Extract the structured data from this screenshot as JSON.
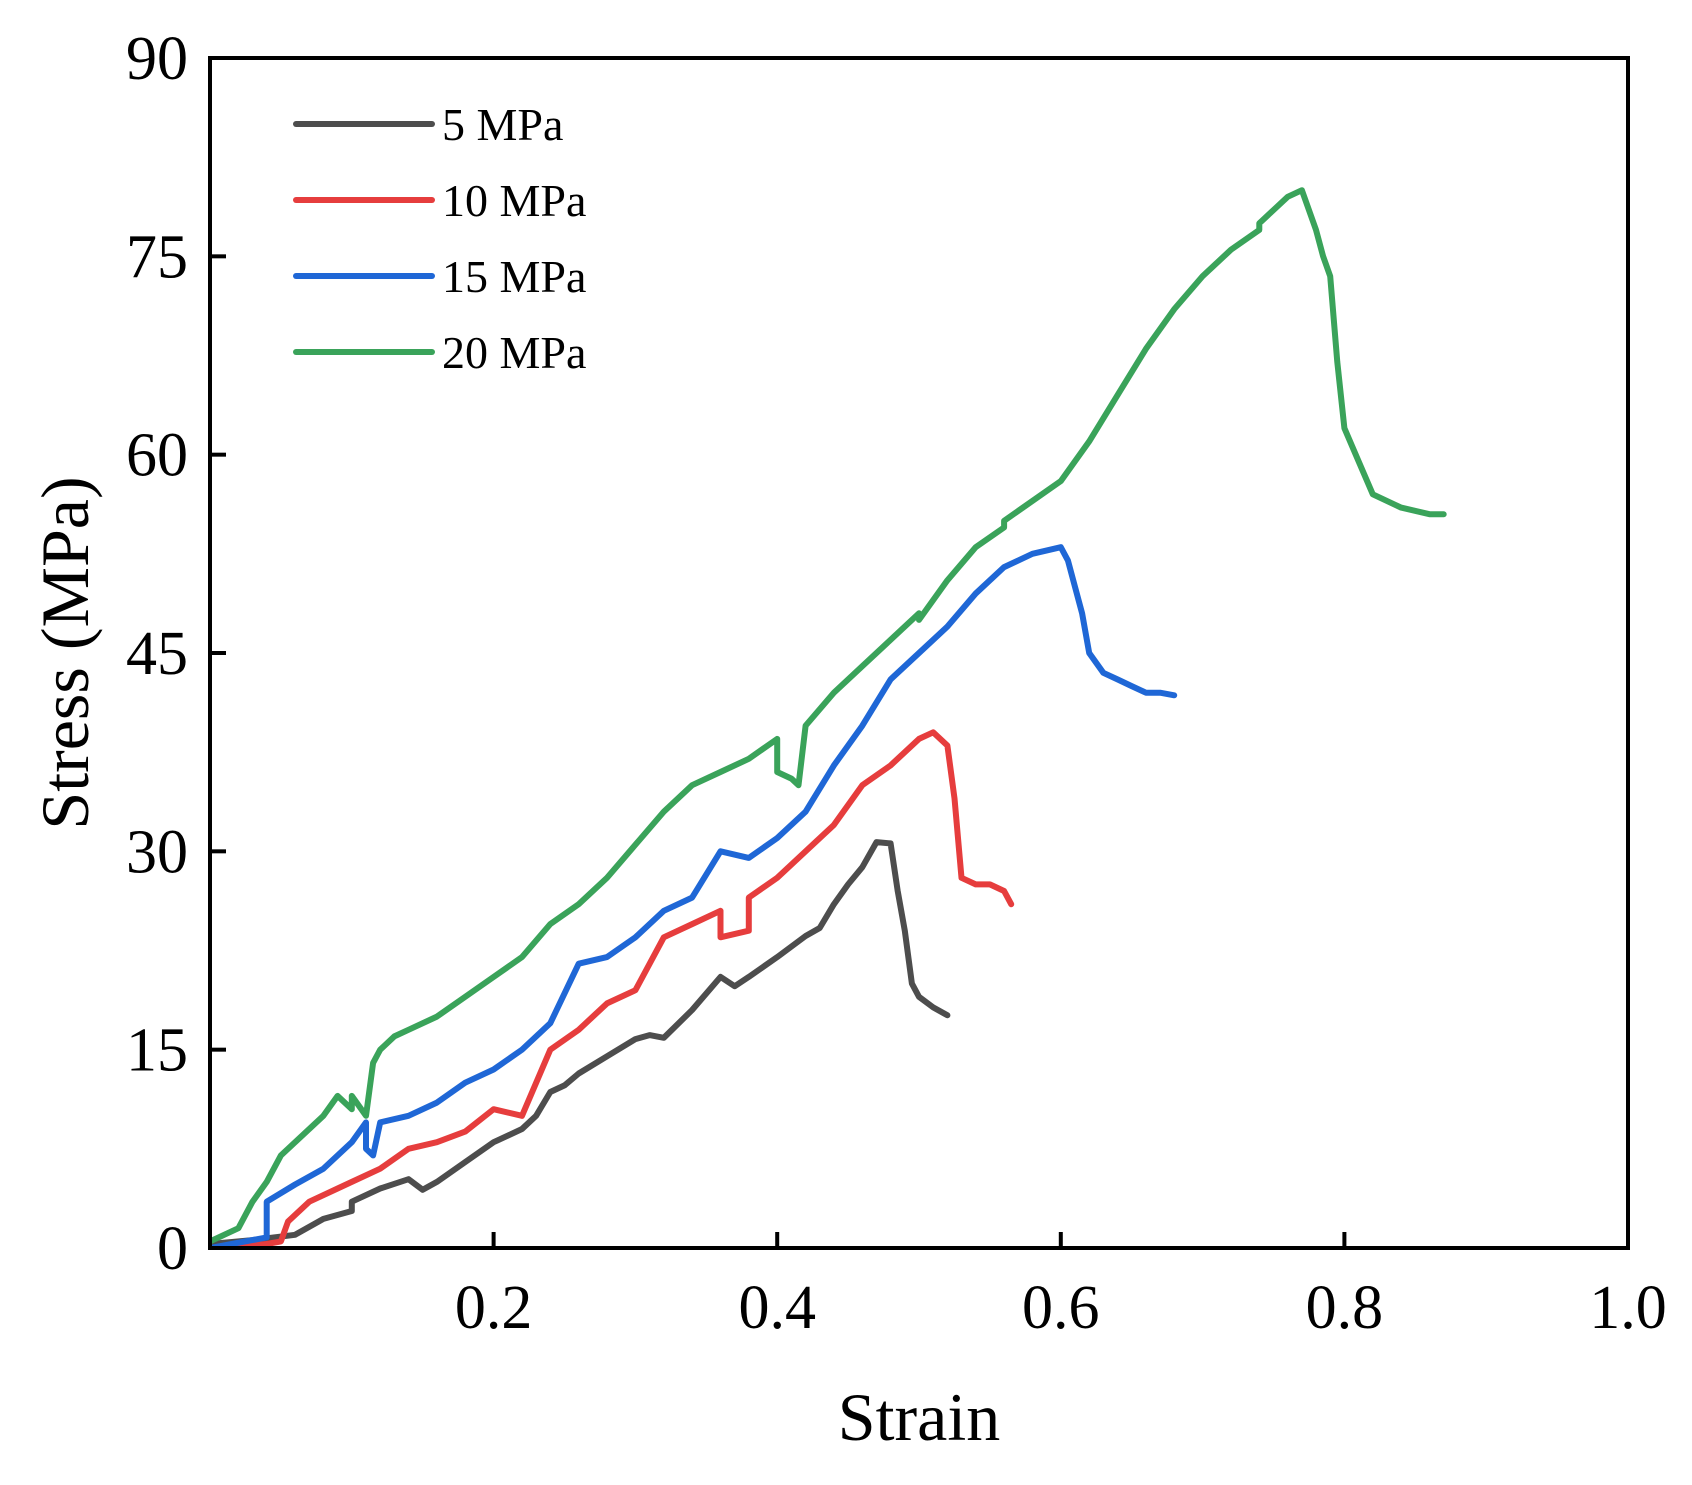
{
  "chart_data": {
    "type": "line",
    "title": "",
    "xlabel": "Strain",
    "ylabel": "Stress (MPa)",
    "xlim": [
      0,
      1.0
    ],
    "ylim": [
      0,
      90
    ],
    "xticks": [
      0.2,
      0.4,
      0.6,
      0.8,
      1.0
    ],
    "xtick_labels": [
      "0.2",
      "0.4",
      "0.6",
      "0.8",
      "1.0"
    ],
    "yticks": [
      0,
      15,
      30,
      45,
      60,
      75,
      90
    ],
    "ytick_labels": [
      "0",
      "15",
      "30",
      "45",
      "60",
      "75",
      "90"
    ],
    "grid": false,
    "legend_position": "top-left",
    "series": [
      {
        "name": "5 MPa",
        "color": "#4d4d4d",
        "x": [
          0.0,
          0.03,
          0.06,
          0.08,
          0.1,
          0.1,
          0.12,
          0.14,
          0.15,
          0.16,
          0.18,
          0.2,
          0.22,
          0.23,
          0.24,
          0.25,
          0.26,
          0.28,
          0.3,
          0.31,
          0.32,
          0.34,
          0.36,
          0.37,
          0.38,
          0.4,
          0.42,
          0.43,
          0.44,
          0.45,
          0.46,
          0.47,
          0.48,
          0.485,
          0.49,
          0.495,
          0.5,
          0.51,
          0.52
        ],
        "y": [
          0.3,
          0.6,
          1.0,
          2.2,
          2.8,
          3.5,
          4.5,
          5.2,
          4.4,
          5.0,
          6.5,
          8.0,
          9.0,
          10.0,
          11.8,
          12.3,
          13.2,
          14.5,
          15.8,
          16.1,
          15.9,
          18.0,
          20.5,
          19.8,
          20.5,
          22.0,
          23.6,
          24.2,
          26.0,
          27.5,
          28.8,
          30.7,
          30.6,
          27.0,
          24.0,
          20.0,
          19.0,
          18.2,
          17.6
        ]
      },
      {
        "name": "10 MPa",
        "color": "#e63d3d",
        "x": [
          0.0,
          0.04,
          0.05,
          0.055,
          0.07,
          0.09,
          0.1,
          0.12,
          0.14,
          0.16,
          0.18,
          0.2,
          0.22,
          0.24,
          0.26,
          0.28,
          0.3,
          0.32,
          0.34,
          0.36,
          0.36,
          0.38,
          0.38,
          0.4,
          0.42,
          0.44,
          0.46,
          0.48,
          0.5,
          0.51,
          0.52,
          0.525,
          0.53,
          0.54,
          0.55,
          0.56,
          0.565
        ],
        "y": [
          0.0,
          0.3,
          0.5,
          2.0,
          3.5,
          4.5,
          5.0,
          6.0,
          7.5,
          8.0,
          8.8,
          10.5,
          10.0,
          15.0,
          16.5,
          18.5,
          19.5,
          23.5,
          24.5,
          25.5,
          23.5,
          24.0,
          26.5,
          28.0,
          30.0,
          32.0,
          35.0,
          36.5,
          38.5,
          39.0,
          38.0,
          34.0,
          28.0,
          27.5,
          27.5,
          27.0,
          26.0
        ]
      },
      {
        "name": "15 MPa",
        "color": "#1f67d6",
        "x": [
          0.0,
          0.04,
          0.04,
          0.06,
          0.08,
          0.1,
          0.11,
          0.11,
          0.115,
          0.12,
          0.14,
          0.16,
          0.18,
          0.2,
          0.22,
          0.24,
          0.26,
          0.28,
          0.3,
          0.32,
          0.34,
          0.36,
          0.38,
          0.4,
          0.42,
          0.44,
          0.46,
          0.48,
          0.5,
          0.52,
          0.54,
          0.56,
          0.58,
          0.6,
          0.605,
          0.61,
          0.615,
          0.62,
          0.63,
          0.64,
          0.65,
          0.66,
          0.67,
          0.68
        ],
        "y": [
          0.0,
          0.8,
          3.5,
          4.8,
          6.0,
          8.0,
          9.5,
          7.5,
          7.0,
          9.5,
          10.0,
          11.0,
          12.5,
          13.5,
          15.0,
          17.0,
          21.5,
          22.0,
          23.5,
          25.5,
          26.5,
          30.0,
          29.5,
          31.0,
          33.0,
          36.5,
          39.5,
          43.0,
          45.0,
          47.0,
          49.5,
          51.5,
          52.5,
          53.0,
          52.0,
          50.0,
          48.0,
          45.0,
          43.5,
          43.0,
          42.5,
          42.0,
          42.0,
          41.8
        ]
      },
      {
        "name": "20 MPa",
        "color": "#3aa35a",
        "x": [
          0.0,
          0.02,
          0.03,
          0.04,
          0.05,
          0.06,
          0.08,
          0.09,
          0.1,
          0.1,
          0.11,
          0.115,
          0.12,
          0.13,
          0.14,
          0.16,
          0.18,
          0.2,
          0.22,
          0.24,
          0.26,
          0.28,
          0.3,
          0.32,
          0.34,
          0.36,
          0.38,
          0.4,
          0.4,
          0.41,
          0.415,
          0.42,
          0.44,
          0.46,
          0.48,
          0.5,
          0.5,
          0.52,
          0.54,
          0.56,
          0.56,
          0.6,
          0.62,
          0.64,
          0.66,
          0.68,
          0.7,
          0.72,
          0.74,
          0.74,
          0.76,
          0.77,
          0.78,
          0.785,
          0.79,
          0.795,
          0.8,
          0.81,
          0.82,
          0.84,
          0.86,
          0.87
        ],
        "y": [
          0.5,
          1.5,
          3.5,
          5.0,
          7.0,
          8.0,
          10.0,
          11.5,
          10.5,
          11.5,
          10.0,
          14.0,
          15.0,
          16.0,
          16.5,
          17.5,
          19.0,
          20.5,
          22.0,
          24.5,
          26.0,
          28.0,
          30.5,
          33.0,
          35.0,
          36.0,
          37.0,
          38.5,
          36.0,
          35.5,
          35.0,
          39.5,
          42.0,
          44.0,
          46.0,
          48.0,
          47.5,
          50.5,
          53.0,
          54.5,
          55.0,
          58.0,
          61.0,
          64.5,
          68.0,
          71.0,
          73.5,
          75.5,
          77.0,
          77.5,
          79.5,
          80.0,
          77.0,
          75.0,
          73.5,
          67.0,
          62.0,
          59.5,
          57.0,
          56.0,
          55.5,
          55.5
        ]
      }
    ]
  }
}
